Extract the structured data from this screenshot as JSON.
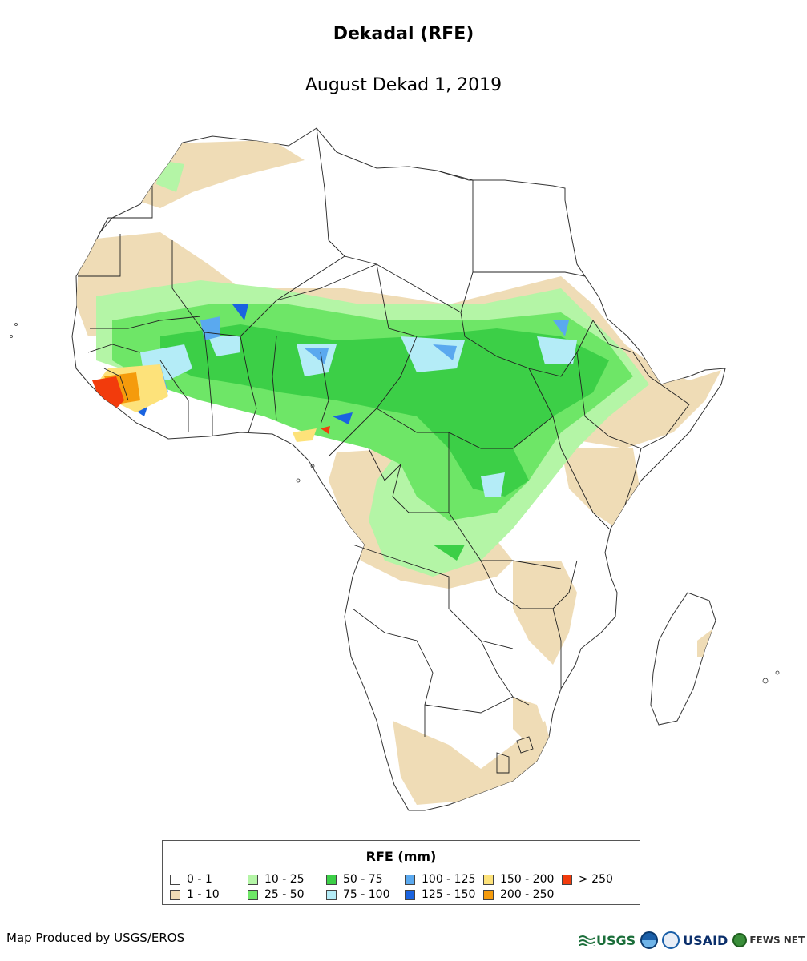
{
  "title": "Dekadal (RFE)",
  "subtitle": "August Dekad 1, 2019",
  "legend": {
    "title": "RFE (mm)",
    "items": [
      {
        "label": "0 - 1",
        "color": "#ffffff"
      },
      {
        "label": "1 - 10",
        "color": "#efdcb6"
      },
      {
        "label": "10 - 25",
        "color": "#b4f5a6"
      },
      {
        "label": "25 - 50",
        "color": "#6ee667"
      },
      {
        "label": "50 - 75",
        "color": "#3ccf47"
      },
      {
        "label": "75 - 100",
        "color": "#b4ecf7"
      },
      {
        "label": "100 - 125",
        "color": "#5aa9ef"
      },
      {
        "label": "125 - 150",
        "color": "#1a63e0"
      },
      {
        "label": "150 - 200",
        "color": "#fde27a"
      },
      {
        "label": "200 - 250",
        "color": "#f59b0c"
      },
      {
        "label": "> 250",
        "color": "#f23b0c"
      }
    ]
  },
  "credit": "Map Produced by USGS/EROS",
  "logos": {
    "usgs": "USGS",
    "usaid": "USAID",
    "fews": "FEWS NET"
  }
}
